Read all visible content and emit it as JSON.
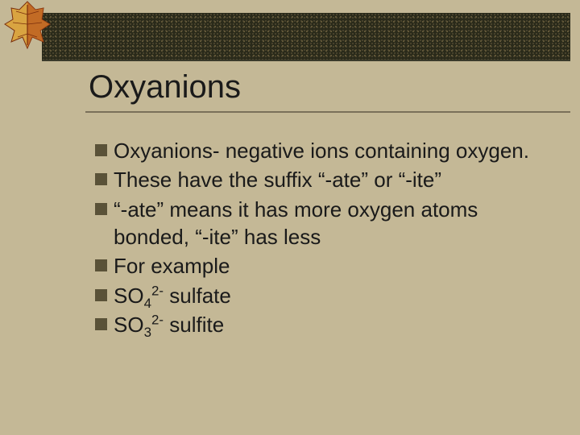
{
  "slide": {
    "title": "Oxyanions",
    "bullets": [
      {
        "text": "Oxyanions- negative ions containing oxygen."
      },
      {
        "text": "These have the suffix “-ate” or “-ite”"
      },
      {
        "text": "“-ate” means it has more oxygen atoms bonded, “-ite” has less"
      },
      {
        "text": "For example"
      },
      {
        "formula": {
          "base": "SO",
          "sub": "4",
          "sup": "2-"
        },
        "after": " sulfate"
      },
      {
        "formula": {
          "base": "SO",
          "sub": "3",
          "sup": "2-"
        },
        "after": " sulfite"
      }
    ]
  },
  "style": {
    "background_color": "#c4b896",
    "bullet_square_color": "#5a5238",
    "title_fontsize": 40,
    "bullet_fontsize": 26,
    "text_color": "#1a1a1a",
    "topbar_color": "#2a2a1a",
    "leaf_colors": [
      "#d9a441",
      "#b8531a",
      "#7a2e0c"
    ]
  }
}
